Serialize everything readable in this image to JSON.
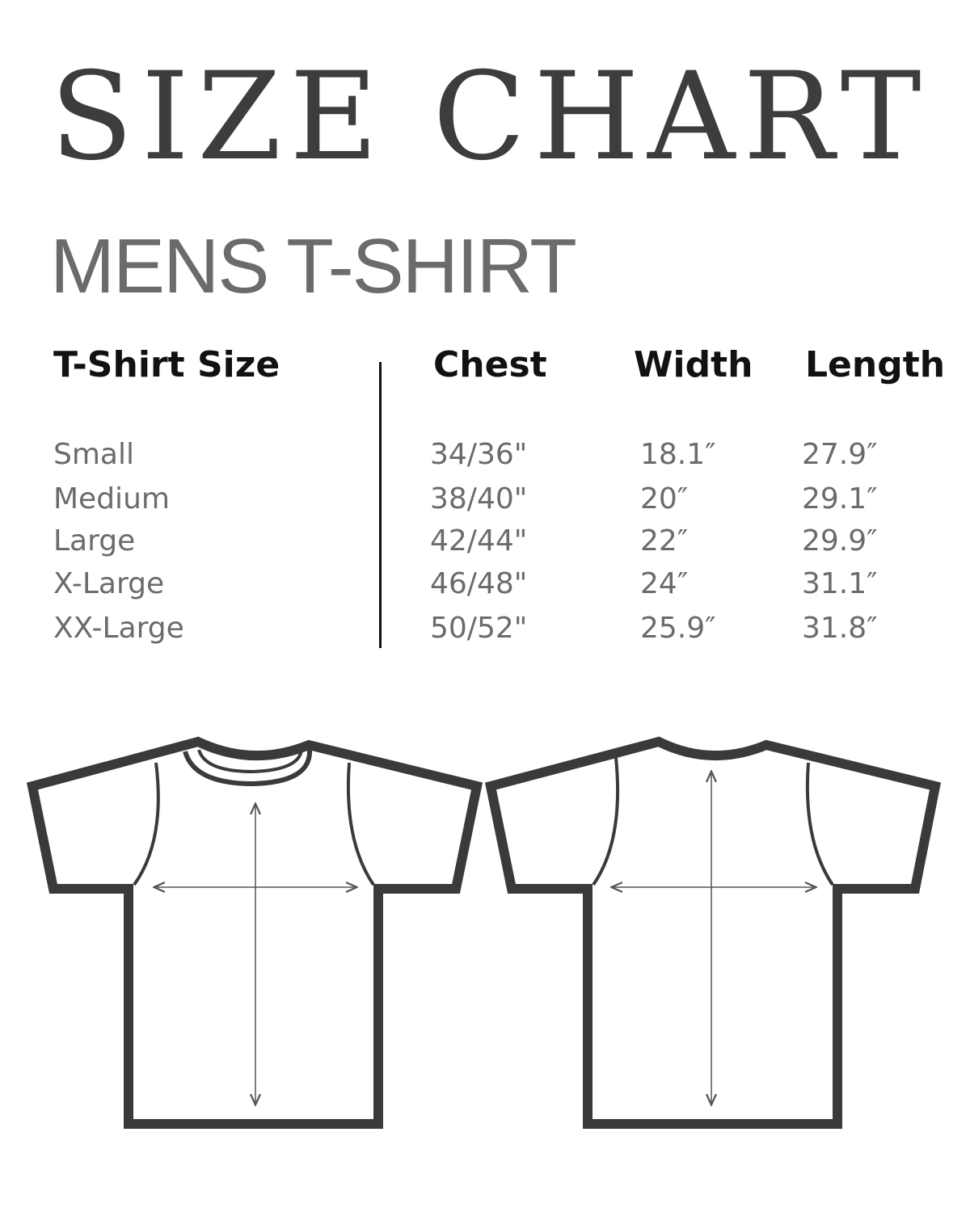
{
  "title": "SIZE CHART",
  "subtitle": "MENS T-SHIRT",
  "table": {
    "headers": [
      "T-Shirt Size",
      "Chest",
      "Width",
      "Length"
    ],
    "rows": [
      [
        "Small",
        "34/36\"",
        "18.1″",
        "27.9″"
      ],
      [
        "Medium",
        "38/40\"",
        "20″",
        "29.1″"
      ],
      [
        "Large",
        "42/44\"",
        "22″",
        "29.9″"
      ],
      [
        "X-Large",
        "46/48\"",
        "24″",
        "31.1″"
      ],
      [
        "XX-Large",
        "50/52\"",
        "25.9″",
        "31.8″"
      ]
    ]
  },
  "colors": {
    "title": "#3d3d3d",
    "subtitle": "#6b6b6d",
    "outline": "#3a3a3a",
    "text": "#6b6b6b"
  },
  "illustrations": [
    "tshirt-front",
    "tshirt-back"
  ]
}
